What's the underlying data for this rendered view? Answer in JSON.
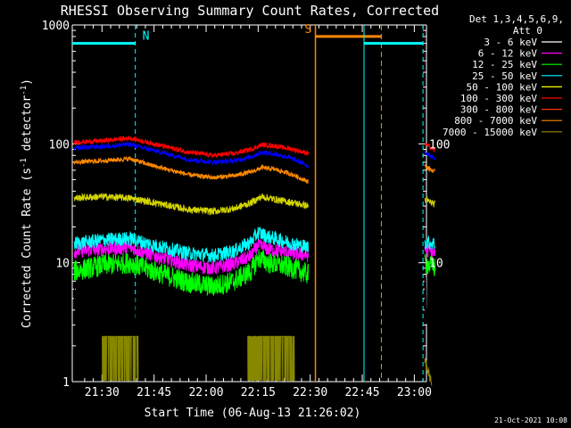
{
  "chart_data": {
    "type": "line",
    "title": "RHESSI Observing Summary Count Rates, Corrected",
    "xlabel": "Start Time (06-Aug-13 21:26:02)",
    "ylabel": "Corrected Count Rate (s⁻¹ detector⁻¹)",
    "ylabel_main": "Corrected Count Rate (s",
    "ylabel_exp1": "-1",
    "ylabel_mid": " detector",
    "ylabel_exp2": "-1",
    "ylabel_end": ")",
    "yscale": "log",
    "ylim": [
      1,
      1000
    ],
    "xlim_minutes": [
      21.43,
      63.5
    ],
    "x_ticks": [
      {
        "label": "21:30",
        "minute": 30
      },
      {
        "label": "21:45",
        "minute": 45
      },
      {
        "label": "22:00",
        "minute": 60
      },
      {
        "label": "22:15",
        "minute": 75
      },
      {
        "label": "22:30",
        "minute": 90
      },
      {
        "label": "22:45",
        "minute": 105
      },
      {
        "label": "23:00",
        "minute": 120
      }
    ],
    "y_ticks_left": [
      {
        "label": "1000",
        "value": 1000
      },
      {
        "label": "100",
        "value": 100
      },
      {
        "label": "10",
        "value": 10
      },
      {
        "label": "1",
        "value": 1
      }
    ],
    "y_ticks_right": [
      {
        "label": "100",
        "value": 100
      },
      {
        "label": "10",
        "value": 10
      }
    ],
    "legend_header": [
      "Det 1,3,4,5,6,9,",
      "Att 0"
    ],
    "series": [
      {
        "name": "3 - 6 keV",
        "color": "#ffffff",
        "trace": "#000000",
        "keypoints": [
          [
            22,
            3.6
          ],
          [
            30,
            3.9
          ],
          [
            34,
            4.1
          ],
          [
            45,
            3.7
          ],
          [
            50,
            3.5
          ],
          [
            55,
            3.6
          ],
          [
            60,
            3.8
          ],
          [
            65,
            3.9
          ],
          [
            70,
            3.6
          ],
          [
            75,
            4.2
          ],
          [
            80,
            3.8
          ],
          [
            85,
            3.6
          ],
          [
            89.5,
            3.7
          ]
        ],
        "noise": 0.2,
        "spikes": true,
        "after": [
          [
            123,
            5.0
          ],
          [
            126,
            3.6
          ]
        ]
      },
      {
        "name": "6 - 12 keV",
        "color": "#ff00ff",
        "trace": "#ff00ff",
        "keypoints": [
          [
            22,
            12.5
          ],
          [
            30,
            13
          ],
          [
            38,
            13.5
          ],
          [
            45,
            11.5
          ],
          [
            55,
            9.5
          ],
          [
            62,
            9.0
          ],
          [
            68,
            9.8
          ],
          [
            73,
            11.5
          ],
          [
            75,
            14
          ],
          [
            78,
            13
          ],
          [
            85,
            12
          ],
          [
            89.5,
            11.5
          ]
        ],
        "noise": 0.06,
        "after": [
          [
            123,
            13
          ],
          [
            126,
            12
          ]
        ]
      },
      {
        "name": "12 - 25 keV",
        "color": "#00ff00",
        "trace": "#00ff00",
        "keypoints": [
          [
            22,
            8.5
          ],
          [
            30,
            9.5
          ],
          [
            38,
            10
          ],
          [
            45,
            8.5
          ],
          [
            55,
            6.8
          ],
          [
            62,
            6.3
          ],
          [
            68,
            7.0
          ],
          [
            73,
            8.5
          ],
          [
            75,
            11
          ],
          [
            78,
            10
          ],
          [
            85,
            9.0
          ],
          [
            89.5,
            8.0
          ]
        ],
        "noise": 0.09,
        "after": [
          [
            123,
            10
          ],
          [
            126,
            9
          ]
        ]
      },
      {
        "name": "25 - 50 keV",
        "color": "#00ffff",
        "trace": "#00ffff",
        "keypoints": [
          [
            22,
            14.5
          ],
          [
            30,
            15.5
          ],
          [
            38,
            16
          ],
          [
            45,
            14
          ],
          [
            55,
            12
          ],
          [
            62,
            11.5
          ],
          [
            68,
            12.5
          ],
          [
            73,
            15
          ],
          [
            75,
            18
          ],
          [
            78,
            16.5
          ],
          [
            85,
            14.5
          ],
          [
            89.5,
            13.5
          ]
        ],
        "noise": 0.06,
        "after": [
          [
            123,
            15
          ],
          [
            126,
            14.5
          ]
        ]
      },
      {
        "name": "50 - 100 keV",
        "color": "#ffff00",
        "trace": "#d4d400",
        "keypoints": [
          [
            22,
            35
          ],
          [
            30,
            36
          ],
          [
            38,
            35
          ],
          [
            45,
            32
          ],
          [
            55,
            28
          ],
          [
            62,
            27
          ],
          [
            68,
            28.5
          ],
          [
            73,
            32
          ],
          [
            76,
            36
          ],
          [
            80,
            34
          ],
          [
            85,
            32
          ],
          [
            89.5,
            30
          ]
        ],
        "noise": 0.03,
        "after": [
          [
            123,
            34
          ],
          [
            126,
            31
          ]
        ]
      },
      {
        "name": "100 - 300 keV",
        "color": "#ff0000",
        "trace": "#ff0000",
        "keypoints": [
          [
            22,
            103
          ],
          [
            30,
            106
          ],
          [
            38,
            112
          ],
          [
            45,
            100
          ],
          [
            55,
            85
          ],
          [
            62,
            80
          ],
          [
            68,
            83
          ],
          [
            73,
            90
          ],
          [
            76,
            98
          ],
          [
            80,
            96
          ],
          [
            85,
            90
          ],
          [
            89.5,
            83
          ]
        ],
        "noise": 0.02,
        "after": [
          [
            123,
            100
          ],
          [
            126,
            88
          ]
        ]
      },
      {
        "name": "300 - 800 keV",
        "color": "#ff3300",
        "trace": "#0000ff",
        "keypoints": [
          [
            22,
            92
          ],
          [
            30,
            95
          ],
          [
            38,
            99
          ],
          [
            45,
            88
          ],
          [
            55,
            74
          ],
          [
            62,
            70
          ],
          [
            68,
            72
          ],
          [
            73,
            78
          ],
          [
            76,
            85
          ],
          [
            80,
            82
          ],
          [
            85,
            75
          ],
          [
            89.5,
            65
          ]
        ],
        "noise": 0.02,
        "after": [
          [
            123,
            85
          ],
          [
            126,
            75
          ]
        ]
      },
      {
        "name": "800 - 7000 keV",
        "color": "#ff8800",
        "trace": "#ff8800",
        "keypoints": [
          [
            22,
            70
          ],
          [
            30,
            72
          ],
          [
            38,
            75
          ],
          [
            45,
            65
          ],
          [
            55,
            55
          ],
          [
            62,
            52
          ],
          [
            68,
            54
          ],
          [
            73,
            58
          ],
          [
            76,
            63
          ],
          [
            80,
            61
          ],
          [
            85,
            55
          ],
          [
            89.5,
            48
          ]
        ],
        "noise": 0.02,
        "after": [
          [
            123,
            65
          ],
          [
            126,
            58
          ]
        ]
      },
      {
        "name": "7000 - 15000 keV",
        "color": "#a08800",
        "trace": "#888800",
        "keypoints": [
          [
            30,
            2.4
          ],
          [
            36,
            2.4
          ],
          [
            40,
            2.4
          ],
          [
            72,
            2.4
          ],
          [
            78,
            2.4
          ],
          [
            86,
            2.4
          ]
        ],
        "noise": 0.0,
        "bursts": [
          [
            30,
            40.5
          ],
          [
            72,
            85.5
          ]
        ],
        "after": [
          [
            123,
            1.5
          ],
          [
            125,
            1.0
          ]
        ]
      }
    ],
    "annotations": [
      {
        "text": "N",
        "minute": 39.6,
        "value": 700,
        "color": "#00ffff"
      },
      {
        "text": "S",
        "minute": 91.5,
        "value": 800,
        "color": "#ff8800"
      }
    ],
    "timestamp": "21-Oct-2021 10:08"
  }
}
